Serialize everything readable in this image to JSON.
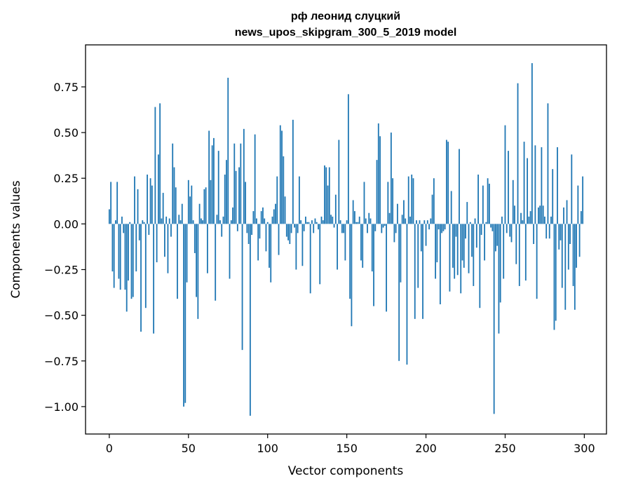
{
  "chart_data": {
    "type": "bar",
    "title": "рф леонид слуцкий",
    "subtitle": "news_upos_skipgram_300_5_2019 model",
    "xlabel": "Vector components",
    "ylabel": "Components values",
    "xlim": [
      -15,
      314
    ],
    "ylim": [
      -1.15,
      0.98
    ],
    "xticks": [
      0,
      50,
      100,
      150,
      200,
      250,
      300
    ],
    "xtick_labels": [
      "0",
      "50",
      "100",
      "150",
      "200",
      "250",
      "300"
    ],
    "yticks": [
      -1.0,
      -0.75,
      -0.5,
      -0.25,
      0.0,
      0.25,
      0.5,
      0.75
    ],
    "ytick_labels": [
      "−1.00",
      "−0.75",
      "−0.50",
      "−0.25",
      "0.00",
      "0.25",
      "0.50",
      "0.75"
    ],
    "grid": false,
    "bar_color": "#1f77b4",
    "x": [
      0,
      1,
      2,
      3,
      4,
      5,
      6,
      7,
      8,
      9,
      10,
      11,
      12,
      13,
      14,
      15,
      16,
      17,
      18,
      19,
      20,
      21,
      22,
      23,
      24,
      25,
      26,
      27,
      28,
      29,
      30,
      31,
      32,
      33,
      34,
      35,
      36,
      37,
      38,
      39,
      40,
      41,
      42,
      43,
      44,
      45,
      46,
      47,
      48,
      49,
      50,
      51,
      52,
      53,
      54,
      55,
      56,
      57,
      58,
      59,
      60,
      61,
      62,
      63,
      64,
      65,
      66,
      67,
      68,
      69,
      70,
      71,
      72,
      73,
      74,
      75,
      76,
      77,
      78,
      79,
      80,
      81,
      82,
      83,
      84,
      85,
      86,
      87,
      88,
      89,
      90,
      91,
      92,
      93,
      94,
      95,
      96,
      97,
      98,
      99,
      100,
      101,
      102,
      103,
      104,
      105,
      106,
      107,
      108,
      109,
      110,
      111,
      112,
      113,
      114,
      115,
      116,
      117,
      118,
      119,
      120,
      121,
      122,
      123,
      124,
      125,
      126,
      127,
      128,
      129,
      130,
      131,
      132,
      133,
      134,
      135,
      136,
      137,
      138,
      139,
      140,
      141,
      142,
      143,
      144,
      145,
      146,
      147,
      148,
      149,
      150,
      151,
      152,
      153,
      154,
      155,
      156,
      157,
      158,
      159,
      160,
      161,
      162,
      163,
      164,
      165,
      166,
      167,
      168,
      169,
      170,
      171,
      172,
      173,
      174,
      175,
      176,
      177,
      178,
      179,
      180,
      181,
      182,
      183,
      184,
      185,
      186,
      187,
      188,
      189,
      190,
      191,
      192,
      193,
      194,
      195,
      196,
      197,
      198,
      199,
      200,
      201,
      202,
      203,
      204,
      205,
      206,
      207,
      208,
      209,
      210,
      211,
      212,
      213,
      214,
      215,
      216,
      217,
      218,
      219,
      220,
      221,
      222,
      223,
      224,
      225,
      226,
      227,
      228,
      229,
      230,
      231,
      232,
      233,
      234,
      235,
      236,
      237,
      238,
      239,
      240,
      241,
      242,
      243,
      244,
      245,
      246,
      247,
      248,
      249,
      250,
      251,
      252,
      253,
      254,
      255,
      256,
      257,
      258,
      259,
      260,
      261,
      262,
      263,
      264,
      265,
      266,
      267,
      268,
      269,
      270,
      271,
      272,
      273,
      274,
      275,
      276,
      277,
      278,
      279,
      280,
      281,
      282,
      283,
      284,
      285,
      286,
      287,
      288,
      289,
      290,
      291,
      292,
      293,
      294,
      295,
      296,
      297,
      298,
      299
    ],
    "values": [
      0.08,
      0.23,
      -0.26,
      -0.35,
      0.02,
      0.23,
      -0.3,
      -0.36,
      0.04,
      -0.05,
      -0.36,
      -0.48,
      -0.31,
      0.01,
      -0.41,
      -0.4,
      0.26,
      -0.26,
      0.19,
      -0.09,
      -0.59,
      0.02,
      0.01,
      -0.46,
      0.27,
      -0.06,
      0.25,
      0.21,
      -0.6,
      0.64,
      -0.21,
      0.38,
      0.66,
      0.03,
      0.17,
      -0.18,
      0.04,
      -0.27,
      0.03,
      -0.07,
      0.44,
      0.31,
      0.2,
      -0.41,
      0.05,
      0.02,
      0.11,
      -1.0,
      -0.98,
      -0.32,
      0.24,
      0.15,
      0.21,
      0.02,
      -0.16,
      -0.4,
      -0.52,
      0.11,
      0.03,
      0.02,
      0.19,
      0.2,
      -0.27,
      0.51,
      0.24,
      0.43,
      0.47,
      -0.42,
      0.05,
      0.4,
      0.02,
      -0.07,
      0.04,
      0.27,
      0.35,
      0.8,
      -0.3,
      0.02,
      0.09,
      0.44,
      0.29,
      -0.04,
      0.31,
      0.44,
      -0.69,
      0.52,
      0.23,
      -0.05,
      -0.11,
      -1.05,
      -0.06,
      0.07,
      0.49,
      0.03,
      -0.2,
      -0.08,
      0.07,
      0.09,
      0.03,
      -0.15,
      0.01,
      -0.24,
      -0.32,
      0.04,
      0.08,
      0.11,
      0.26,
      -0.17,
      0.54,
      0.51,
      0.37,
      0.15,
      -0.07,
      -0.09,
      -0.11,
      -0.05,
      0.57,
      -0.02,
      -0.25,
      -0.05,
      0.26,
      0.02,
      -0.23,
      -0.04,
      0.04,
      0.01,
      0.01,
      -0.38,
      0.02,
      -0.05,
      0.03,
      0.01,
      -0.03,
      -0.33,
      0.04,
      0.02,
      0.32,
      0.31,
      0.21,
      0.31,
      0.05,
      0.04,
      -0.02,
      0.16,
      -0.25,
      0.46,
      0.02,
      -0.05,
      -0.05,
      -0.2,
      0.02,
      0.71,
      -0.41,
      -0.56,
      0.13,
      0.07,
      0.01,
      0.01,
      0.04,
      -0.2,
      -0.24,
      0.23,
      0.03,
      -0.05,
      0.06,
      0.03,
      -0.26,
      -0.45,
      -0.04,
      0.35,
      0.55,
      0.48,
      -0.05,
      -0.02,
      -0.01,
      -0.48,
      0.23,
      0.06,
      0.5,
      0.25,
      -0.1,
      -0.05,
      0.11,
      -0.75,
      -0.32,
      0.05,
      0.13,
      0.03,
      -0.77,
      0.26,
      0.04,
      0.27,
      0.25,
      -0.52,
      0.02,
      -0.35,
      0.02,
      -0.15,
      -0.52,
      0.02,
      -0.12,
      0.02,
      -0.03,
      0.03,
      0.16,
      0.25,
      -0.3,
      -0.21,
      -0.03,
      -0.44,
      -0.05,
      -0.04,
      -0.03,
      0.46,
      0.45,
      -0.37,
      0.18,
      -0.24,
      -0.3,
      -0.07,
      -0.28,
      0.41,
      -0.38,
      -0.2,
      -0.24,
      -0.08,
      0.12,
      -0.27,
      0.01,
      -0.18,
      -0.34,
      0.03,
      -0.13,
      0.27,
      -0.46,
      -0.06,
      0.21,
      -0.2,
      0.01,
      0.25,
      0.22,
      -0.02,
      -0.04,
      -1.04,
      -0.15,
      -0.12,
      -0.6,
      -0.43,
      0.04,
      -0.3,
      0.54,
      -0.05,
      0.4,
      -0.07,
      -0.1,
      0.24,
      0.1,
      -0.22,
      0.77,
      -0.34,
      0.06,
      0.02,
      0.45,
      -0.31,
      0.36,
      0.04,
      0.07,
      0.88,
      -0.11,
      0.43,
      -0.41,
      0.09,
      0.1,
      0.42,
      0.1,
      0.04,
      -0.08,
      0.66,
      -0.08,
      0.04,
      0.3,
      -0.58,
      -0.53,
      0.42,
      -0.14,
      -0.09,
      -0.35,
      0.09,
      -0.47,
      0.13,
      -0.25,
      -0.11,
      0.38,
      -0.34,
      -0.47,
      -0.24,
      0.21,
      -0.18,
      0.07,
      0.26
    ]
  }
}
